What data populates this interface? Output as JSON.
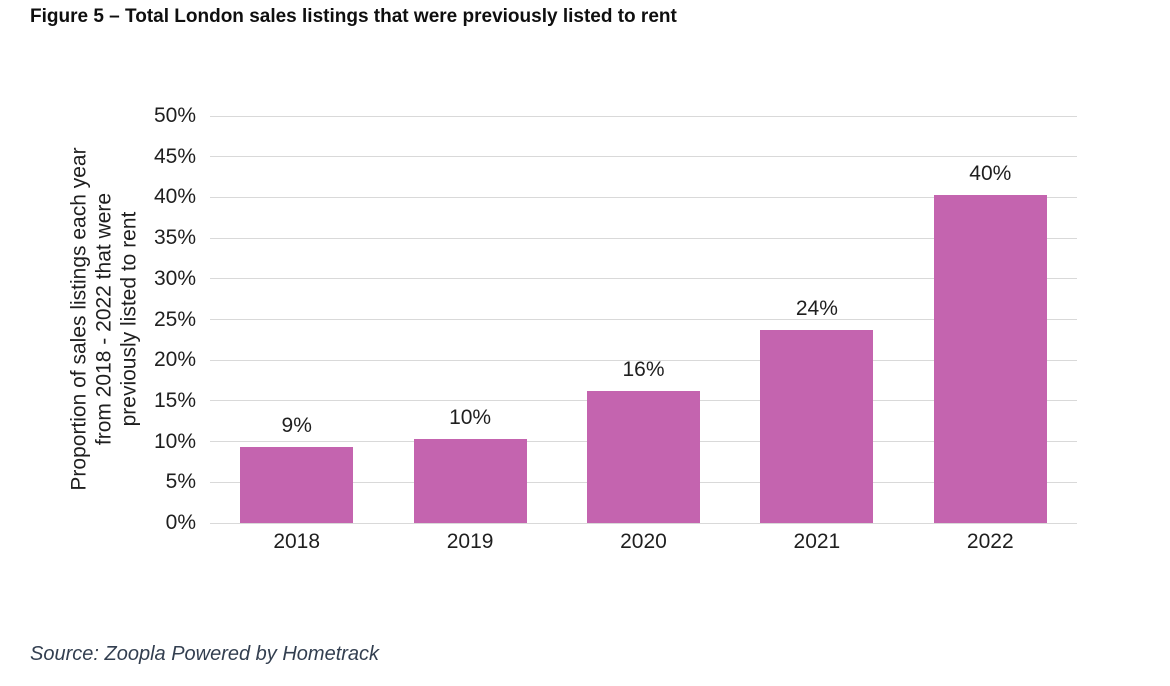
{
  "figure": {
    "title": "Figure 5 – Total London sales listings that were previously listed to rent",
    "source": "Source: Zoopla Powered by Hometrack"
  },
  "chart_data": {
    "type": "bar",
    "title": "Figure 5 – Total London sales listings that were previously listed to rent",
    "categories": [
      "2018",
      "2019",
      "2020",
      "2021",
      "2022"
    ],
    "values": [
      9,
      10,
      16,
      24,
      40
    ],
    "data_labels": [
      "9%",
      "10%",
      "16%",
      "24%",
      "40%"
    ],
    "bar_heights_pct": [
      9.3,
      10.3,
      16.2,
      23.7,
      40.3
    ],
    "xlabel": "",
    "ylabel": "Proportion of sales listings each year from 2018 - 2022 that were previously listed to rent",
    "ylabel_lines": [
      "Proportion of sales listings each year",
      "from 2018 - 2022 that were",
      "previously listed to rent"
    ],
    "y_ticks": [
      "0%",
      "5%",
      "10%",
      "15%",
      "20%",
      "25%",
      "30%",
      "35%",
      "40%",
      "45%",
      "50%"
    ],
    "ylim": [
      0,
      50
    ],
    "y_step": 5,
    "y_tick_suffix": "%",
    "grid": "horizontal",
    "legend": "none",
    "colors": {
      "bar": "#C464AF",
      "gridline": "#D9D9D9",
      "text": "#1F1F1F",
      "title": "#0F0F0F",
      "source": "#333F50"
    },
    "source": "Source: Zoopla Powered by Hometrack"
  }
}
